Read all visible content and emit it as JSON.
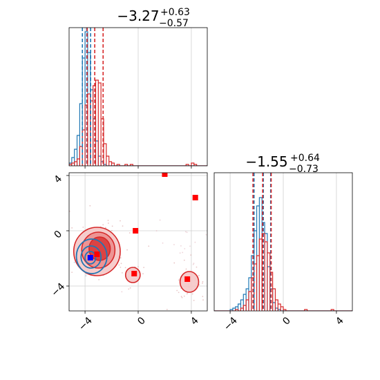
{
  "chart_data": {
    "type": "corner",
    "titles": {
      "param1": {
        "median": "−3.27",
        "plus": "+0.63",
        "minus": "−0.57"
      },
      "param2": {
        "median": "−1.55",
        "plus": "+0.64",
        "minus": "−0.73"
      }
    },
    "axes": {
      "x_range": [
        -5.2,
        5.2
      ],
      "y_range": [
        -5.8,
        4.2
      ],
      "x_ticks": [
        -4,
        0,
        4
      ],
      "y_ticks": [
        -4,
        0,
        4
      ],
      "x_tick_labels": [
        "−4",
        "0",
        "4"
      ],
      "y_tick_labels": [
        "−4",
        "0",
        "4"
      ],
      "grid": true
    },
    "colors": {
      "red": "#d62728",
      "blue": "#1f77b4",
      "marker_red": "#ff0000",
      "marker_blue": "#0000ff"
    },
    "marginal_1": {
      "quantile_lines": [
        {
          "series": "blue",
          "values": [
            -4.2,
            -3.87,
            -3.58
          ]
        },
        {
          "series": "red",
          "values": [
            -3.84,
            -3.27,
            -2.64
          ]
        }
      ],
      "series": [
        {
          "name": "blue",
          "bin_width": 0.2,
          "bins": [
            [
              -5.2,
              0.02
            ],
            [
              -5.0,
              0.06
            ],
            [
              -4.8,
              0.12
            ],
            [
              -4.6,
              0.22
            ],
            [
              -4.4,
              0.45
            ],
            [
              -4.2,
              0.78
            ],
            [
              -4.0,
              0.97
            ],
            [
              -3.8,
              0.82
            ],
            [
              -3.6,
              0.55
            ],
            [
              -3.4,
              0.34
            ],
            [
              -3.2,
              0.18
            ],
            [
              -3.0,
              0.07
            ],
            [
              -2.8,
              0.03
            ],
            [
              -2.6,
              0.01
            ]
          ]
        },
        {
          "name": "red",
          "bin_width": 0.2,
          "bins": [
            [
              -5.2,
              0.01
            ],
            [
              -5.0,
              0.02
            ],
            [
              -4.8,
              0.03
            ],
            [
              -4.6,
              0.05
            ],
            [
              -4.4,
              0.14
            ],
            [
              -4.2,
              0.26
            ],
            [
              -4.0,
              0.44
            ],
            [
              -3.8,
              0.52
            ],
            [
              -3.6,
              0.47
            ],
            [
              -3.4,
              0.58
            ],
            [
              -3.2,
              0.62
            ],
            [
              -3.0,
              0.6
            ],
            [
              -2.8,
              0.34
            ],
            [
              -2.6,
              0.16
            ],
            [
              -2.4,
              0.07
            ],
            [
              -2.2,
              0.03
            ],
            [
              -2.0,
              0.02
            ],
            [
              -1.6,
              0.01
            ],
            [
              -1.0,
              0.01
            ],
            [
              -0.6,
              0.01
            ],
            [
              3.6,
              0.01
            ],
            [
              4.0,
              0.02
            ],
            [
              4.2,
              0.01
            ]
          ]
        }
      ]
    },
    "marginal_2": {
      "quantile_lines": [
        {
          "series": "blue",
          "values": [
            -2.2,
            -1.5,
            -0.95
          ]
        },
        {
          "series": "red",
          "values": [
            -2.28,
            -1.55,
            -0.91
          ]
        }
      ],
      "series": [
        {
          "name": "blue",
          "bin_width": 0.2,
          "bins": [
            [
              -4.0,
              0.01
            ],
            [
              -3.8,
              0.02
            ],
            [
              -3.6,
              0.03
            ],
            [
              -3.4,
              0.05
            ],
            [
              -3.2,
              0.08
            ],
            [
              -3.0,
              0.12
            ],
            [
              -2.8,
              0.16
            ],
            [
              -2.6,
              0.24
            ],
            [
              -2.4,
              0.4
            ],
            [
              -2.2,
              0.58
            ],
            [
              -2.0,
              0.76
            ],
            [
              -1.8,
              0.82
            ],
            [
              -1.6,
              0.64
            ],
            [
              -1.4,
              0.56
            ],
            [
              -1.2,
              0.32
            ],
            [
              -1.0,
              0.16
            ],
            [
              -0.8,
              0.06
            ],
            [
              -0.6,
              0.02
            ],
            [
              -0.4,
              0.01
            ]
          ]
        },
        {
          "name": "red",
          "bin_width": 0.2,
          "bins": [
            [
              -3.6,
              0.01
            ],
            [
              -3.2,
              0.02
            ],
            [
              -3.0,
              0.04
            ],
            [
              -2.8,
              0.08
            ],
            [
              -2.6,
              0.14
            ],
            [
              -2.4,
              0.24
            ],
            [
              -2.2,
              0.34
            ],
            [
              -2.0,
              0.4
            ],
            [
              -1.8,
              0.52
            ],
            [
              -1.6,
              0.56
            ],
            [
              -1.4,
              0.5
            ],
            [
              -1.2,
              0.42
            ],
            [
              -1.0,
              0.28
            ],
            [
              -0.8,
              0.16
            ],
            [
              -0.6,
              0.08
            ],
            [
              -0.4,
              0.05
            ],
            [
              -0.2,
              0.03
            ],
            [
              0.0,
              0.01
            ],
            [
              1.6,
              0.01
            ],
            [
              3.6,
              0.01
            ]
          ]
        }
      ]
    },
    "joint": {
      "red_contours": [
        {
          "level": "outer",
          "cx": -3.1,
          "cy": -1.5,
          "rx": 1.75,
          "ry": 1.75
        },
        {
          "level": "outer",
          "cx": -0.4,
          "cy": -3.2,
          "rx": 0.55,
          "ry": 0.55
        },
        {
          "level": "outer",
          "cx": 3.85,
          "cy": -3.7,
          "rx": 0.7,
          "ry": 0.75
        },
        {
          "level": "mid",
          "cx": -3.0,
          "cy": -1.4,
          "rx": 1.25,
          "ry": 1.3
        },
        {
          "level": "inner",
          "cx": -2.9,
          "cy": -1.3,
          "rx": 0.8,
          "ry": 0.85
        }
      ],
      "blue_contours": [
        {
          "cx": -3.5,
          "cy": -1.85,
          "rx": 1.15,
          "ry": 1.25
        },
        {
          "cx": -3.55,
          "cy": -1.9,
          "rx": 0.75,
          "ry": 0.8
        },
        {
          "cx": -3.6,
          "cy": -1.95,
          "rx": 0.4,
          "ry": 0.45
        }
      ],
      "markers": [
        {
          "color": "red",
          "x": 2.0,
          "y": 4.1
        },
        {
          "color": "red",
          "x": 4.3,
          "y": 2.4
        },
        {
          "color": "red",
          "x": -0.2,
          "y": 0.0
        },
        {
          "color": "red",
          "x": -0.3,
          "y": -3.1
        },
        {
          "color": "red",
          "x": 3.7,
          "y": -3.5
        },
        {
          "color": "red",
          "x": -3.1,
          "y": -1.7
        },
        {
          "color": "blue",
          "x": -3.6,
          "y": -1.95
        }
      ]
    }
  }
}
